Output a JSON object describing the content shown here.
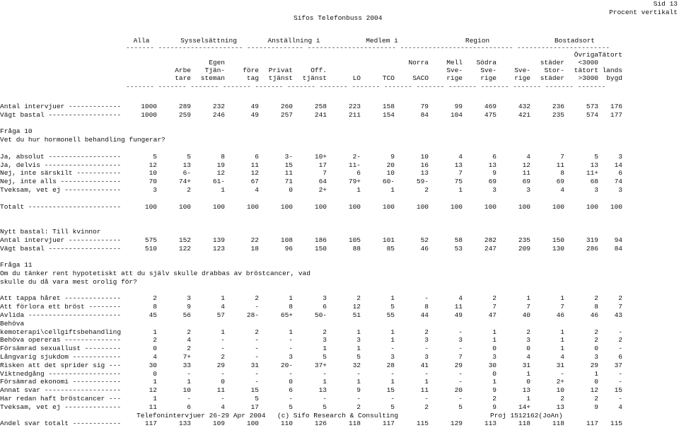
{
  "page": {
    "title": "Sifos Telefonbuss 2004",
    "sid": "Sid 13",
    "mode": "Procent vertikalt",
    "footer_left": "Telefonintervjuer 26-29 Apr 2004",
    "footer_mid": "(c) Sifo Research & Consulting",
    "footer_right": "Proj 1512162(JoAn)"
  },
  "groups": [
    "Alla",
    "Sysselsättning",
    "Anställning i",
    "Medlem i",
    "Region",
    "Bostadsort"
  ],
  "header": {
    "line1": [
      "",
      "",
      "",
      "",
      "",
      "",
      "",
      "",
      "",
      "",
      "",
      "",
      "",
      "Övriga",
      "Tätort"
    ],
    "line2": [
      "",
      "",
      "Egen",
      "",
      "",
      "",
      "",
      "",
      "Norra",
      "Mell",
      "Södra",
      "",
      "städer",
      "<3000"
    ],
    "line3": [
      "",
      "Arbe",
      "Tjän-",
      "före",
      "Privat",
      "Off.",
      "",
      "",
      "",
      "Sve-",
      "Sve-",
      "Sve-",
      "Stor-",
      "tätort",
      "lands"
    ],
    "line4": [
      "",
      "tare",
      "steman",
      "tag",
      "tjänst",
      "tjänst",
      "LO",
      "TCO",
      "SACO",
      "rige",
      "rige",
      "rige",
      "städer",
      ">3000",
      "bygd"
    ]
  },
  "rows": [
    {
      "label": "Antal intervjuer -------------",
      "v": [
        "1000",
        "289",
        "232",
        "49",
        "260",
        "258",
        "223",
        "158",
        "79",
        "99",
        "469",
        "432",
        "236",
        "573",
        "176"
      ]
    },
    {
      "label": "Vägt bastal ------------------",
      "v": [
        "1000",
        "259",
        "246",
        "49",
        "257",
        "241",
        "211",
        "154",
        "84",
        "104",
        "475",
        "421",
        "235",
        "574",
        "177"
      ]
    },
    {
      "label": "",
      "v": []
    },
    {
      "label": "Fråga 10",
      "v": []
    },
    {
      "label": "Vet du hur hormonell behandling fungerar?",
      "v": []
    },
    {
      "label": "",
      "v": []
    },
    {
      "label": "Ja, absolut ------------------",
      "v": [
        "5",
        "5",
        "8",
        "6",
        "3-",
        "10+",
        "2-",
        "9",
        "10",
        "4",
        "6",
        "4",
        "7",
        "5",
        "3"
      ]
    },
    {
      "label": "Ja, delvis -------------------",
      "v": [
        "12",
        "13",
        "19",
        "11",
        "15",
        "17",
        "11-",
        "20",
        "16",
        "13",
        "13",
        "12",
        "11",
        "13",
        "14"
      ]
    },
    {
      "label": "Nej, inte särskilt -----------",
      "v": [
        "10",
        "6-",
        "12",
        "12",
        "11",
        "7",
        "6",
        "10",
        "13",
        "7",
        "9",
        "11",
        "8",
        "11+",
        "6"
      ]
    },
    {
      "label": "Nej, inte alls ---------------",
      "v": [
        "70",
        "74+",
        "61-",
        "67",
        "71",
        "64",
        "79+",
        "60-",
        "59-",
        "75",
        "69",
        "69",
        "69",
        "68",
        "74"
      ]
    },
    {
      "label": "Tveksam, vet ej --------------",
      "v": [
        "3",
        "2",
        "1",
        "4",
        "0",
        "2+",
        "1",
        "1",
        "2",
        "1",
        "3",
        "3",
        "4",
        "3",
        "3"
      ]
    },
    {
      "label": "",
      "v": []
    },
    {
      "label": "Totalt -----------------------",
      "v": [
        "100",
        "100",
        "100",
        "100",
        "100",
        "100",
        "100",
        "100",
        "100",
        "100",
        "100",
        "100",
        "100",
        "100",
        "100"
      ]
    },
    {
      "label": "",
      "v": []
    },
    {
      "label": "",
      "v": []
    },
    {
      "label": "Nytt bastal: Till kvinnor",
      "v": []
    },
    {
      "label": "Antal intervjuer -------------",
      "v": [
        "575",
        "152",
        "139",
        "22",
        "108",
        "186",
        "105",
        "101",
        "52",
        "58",
        "282",
        "235",
        "150",
        "319",
        "94"
      ]
    },
    {
      "label": "Vägt bastal ------------------",
      "v": [
        "510",
        "122",
        "123",
        "18",
        "96",
        "150",
        "88",
        "85",
        "46",
        "53",
        "247",
        "209",
        "130",
        "286",
        "84"
      ]
    },
    {
      "label": "",
      "v": []
    },
    {
      "label": "Fråga 11",
      "v": []
    },
    {
      "label": "Om du tänker rent hypotetiskt att du själv skulle drabbas av bröstcancer, vad",
      "v": []
    },
    {
      "label": "skulle du då vara mest orolig för?",
      "v": []
    },
    {
      "label": "",
      "v": []
    },
    {
      "label": "Att tappa håret --------------",
      "v": [
        "2",
        "3",
        "1",
        "2",
        "1",
        "3",
        "2",
        "1",
        "-",
        "4",
        "2",
        "1",
        "1",
        "2",
        "2"
      ]
    },
    {
      "label": "Att förlora ett bröst --------",
      "v": [
        "8",
        "9",
        "4",
        "-",
        "8",
        "6",
        "12",
        "5",
        "8",
        "11",
        "7",
        "7",
        "7",
        "8",
        "7"
      ]
    },
    {
      "label": "Avlida -----------------------",
      "v": [
        "45",
        "56",
        "57",
        "28-",
        "65+",
        "50-",
        "51",
        "55",
        "44",
        "49",
        "47",
        "40",
        "46",
        "46",
        "43"
      ]
    },
    {
      "label": "Behöva",
      "v": []
    },
    {
      "label": "kemoterapi\\cellgiftsbehandling",
      "v": [
        "1",
        "2",
        "1",
        "2",
        "1",
        "2",
        "1",
        "1",
        "2",
        "-",
        "1",
        "2",
        "1",
        "2",
        "-"
      ]
    },
    {
      "label": "Behöva opereras --------------",
      "v": [
        "2",
        "4",
        "-",
        "-",
        "-",
        "3",
        "3",
        "1",
        "3",
        "3",
        "1",
        "3",
        "1",
        "2",
        "2"
      ]
    },
    {
      "label": "Försämrad sexuallust ---------",
      "v": [
        "0",
        "2",
        "-",
        "-",
        "-",
        "1",
        "1",
        "-",
        "-",
        "-",
        "0",
        "0",
        "1",
        "0",
        "-"
      ]
    },
    {
      "label": "Långvarig sjukdom ------------",
      "v": [
        "4",
        "7+",
        "2",
        "-",
        "3",
        "5",
        "5",
        "3",
        "3",
        "7",
        "3",
        "4",
        "4",
        "3",
        "6"
      ]
    },
    {
      "label": "Risken att det sprider sig ---",
      "v": [
        "30",
        "33",
        "29",
        "31",
        "20-",
        "37+",
        "32",
        "28",
        "41",
        "29",
        "30",
        "31",
        "31",
        "29",
        "37"
      ]
    },
    {
      "label": "Viktnedgång ------------------",
      "v": [
        "0",
        "-",
        "-",
        "-",
        "-",
        "-",
        "-",
        "-",
        "-",
        "-",
        "0",
        "1",
        "-",
        "1",
        "-"
      ]
    },
    {
      "label": "Försämrad ekonomi ------------",
      "v": [
        "1",
        "1",
        "0",
        "-",
        "0",
        "1",
        "1",
        "1",
        "1",
        "-",
        "1",
        "0",
        "2+",
        "0",
        "-"
      ]
    },
    {
      "label": "Annat svar -------------------",
      "v": [
        "12",
        "10",
        "11",
        "15",
        "6",
        "13",
        "9",
        "15",
        "11",
        "20",
        "9",
        "13",
        "10",
        "12",
        "15"
      ]
    },
    {
      "label": "Har redan haft bröstcancer ---",
      "v": [
        "1",
        "-",
        "-",
        "5",
        "-",
        "-",
        "-",
        "-",
        "-",
        "-",
        "2",
        "1",
        "2",
        "2",
        "-"
      ]
    },
    {
      "label": "Tveksam, vet ej --------------",
      "v": [
        "11",
        "6",
        "4",
        "17",
        "5",
        "5",
        "2",
        "5",
        "2",
        "5",
        "9",
        "14+",
        "13",
        "9",
        "4"
      ]
    },
    {
      "label": "",
      "v": []
    },
    {
      "label": "Andel svar totalt ------------",
      "v": [
        "117",
        "133",
        "109",
        "100",
        "110",
        "126",
        "118",
        "117",
        "115",
        "129",
        "113",
        "118",
        "118",
        "117",
        "115"
      ]
    }
  ]
}
